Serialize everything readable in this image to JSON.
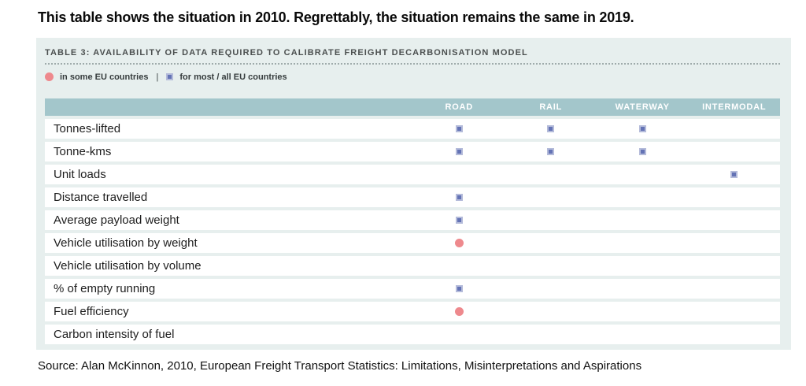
{
  "page": {
    "title": "This table shows the situation in 2010. Regrettably, the situation remains the same in 2019.",
    "source": "Source: Alan McKinnon, 2010, European Freight Transport Statistics: Limitations, Misinterpretations and Aspirations"
  },
  "table": {
    "caption": "TABLE 3: AVAILABILITY OF DATA REQUIRED TO CALIBRATE FREIGHT DECARBONISATION MODEL",
    "legend": {
      "circle_label": "in some EU countries",
      "separator": "|",
      "square_label": "for most / all EU countries"
    },
    "columns": [
      "ROAD",
      "RAIL",
      "WATERWAY",
      "INTERMODAL"
    ],
    "rows": [
      {
        "label": "Tonnes-lifted",
        "cells": [
          "square",
          "square",
          "square",
          ""
        ]
      },
      {
        "label": "Tonne-kms",
        "cells": [
          "square",
          "square",
          "square",
          ""
        ]
      },
      {
        "label": "Unit loads",
        "cells": [
          "",
          "",
          "",
          "square"
        ]
      },
      {
        "label": "Distance travelled",
        "cells": [
          "square",
          "",
          "",
          ""
        ]
      },
      {
        "label": "Average payload weight",
        "cells": [
          "square",
          "",
          "",
          ""
        ]
      },
      {
        "label": "Vehicle utilisation by weight",
        "cells": [
          "circle",
          "",
          "",
          ""
        ]
      },
      {
        "label": "Vehicle utilisation by volume",
        "cells": [
          "",
          "",
          "",
          ""
        ]
      },
      {
        "label": "% of empty running",
        "cells": [
          "square",
          "",
          "",
          ""
        ]
      },
      {
        "label": "Fuel efficiency",
        "cells": [
          "circle",
          "",
          "",
          ""
        ]
      },
      {
        "label": "Carbon intensity of fuel",
        "cells": [
          "",
          "",
          "",
          ""
        ]
      }
    ]
  },
  "colors": {
    "panel_background": "#e7efee",
    "header_background": "#a3c6cb",
    "header_text": "#ffffff",
    "caption_text": "#4b4f4f",
    "row_text": "#1d1d1d",
    "square_marker": "#6473b5",
    "square_marker_border": "#b4bbda",
    "circle_marker": "#ee898d"
  },
  "chart_data": {
    "type": "table",
    "title": "TABLE 3: AVAILABILITY OF DATA REQUIRED TO CALIBRATE FREIGHT DECARBONISATION MODEL",
    "columns": [
      "ROAD",
      "RAIL",
      "WATERWAY",
      "INTERMODAL"
    ],
    "legend": {
      "circle": "in some EU countries",
      "square": "for most / all EU countries"
    },
    "rows": [
      {
        "label": "Tonnes-lifted",
        "ROAD": "most/all",
        "RAIL": "most/all",
        "WATERWAY": "most/all",
        "INTERMODAL": ""
      },
      {
        "label": "Tonne-kms",
        "ROAD": "most/all",
        "RAIL": "most/all",
        "WATERWAY": "most/all",
        "INTERMODAL": ""
      },
      {
        "label": "Unit loads",
        "ROAD": "",
        "RAIL": "",
        "WATERWAY": "",
        "INTERMODAL": "most/all"
      },
      {
        "label": "Distance travelled",
        "ROAD": "most/all",
        "RAIL": "",
        "WATERWAY": "",
        "INTERMODAL": ""
      },
      {
        "label": "Average payload weight",
        "ROAD": "most/all",
        "RAIL": "",
        "WATERWAY": "",
        "INTERMODAL": ""
      },
      {
        "label": "Vehicle utilisation by weight",
        "ROAD": "some",
        "RAIL": "",
        "WATERWAY": "",
        "INTERMODAL": ""
      },
      {
        "label": "Vehicle utilisation by volume",
        "ROAD": "",
        "RAIL": "",
        "WATERWAY": "",
        "INTERMODAL": ""
      },
      {
        "label": "% of empty running",
        "ROAD": "most/all",
        "RAIL": "",
        "WATERWAY": "",
        "INTERMODAL": ""
      },
      {
        "label": "Fuel efficiency",
        "ROAD": "some",
        "RAIL": "",
        "WATERWAY": "",
        "INTERMODAL": ""
      },
      {
        "label": "Carbon intensity of fuel",
        "ROAD": "",
        "RAIL": "",
        "WATERWAY": "",
        "INTERMODAL": ""
      }
    ]
  }
}
